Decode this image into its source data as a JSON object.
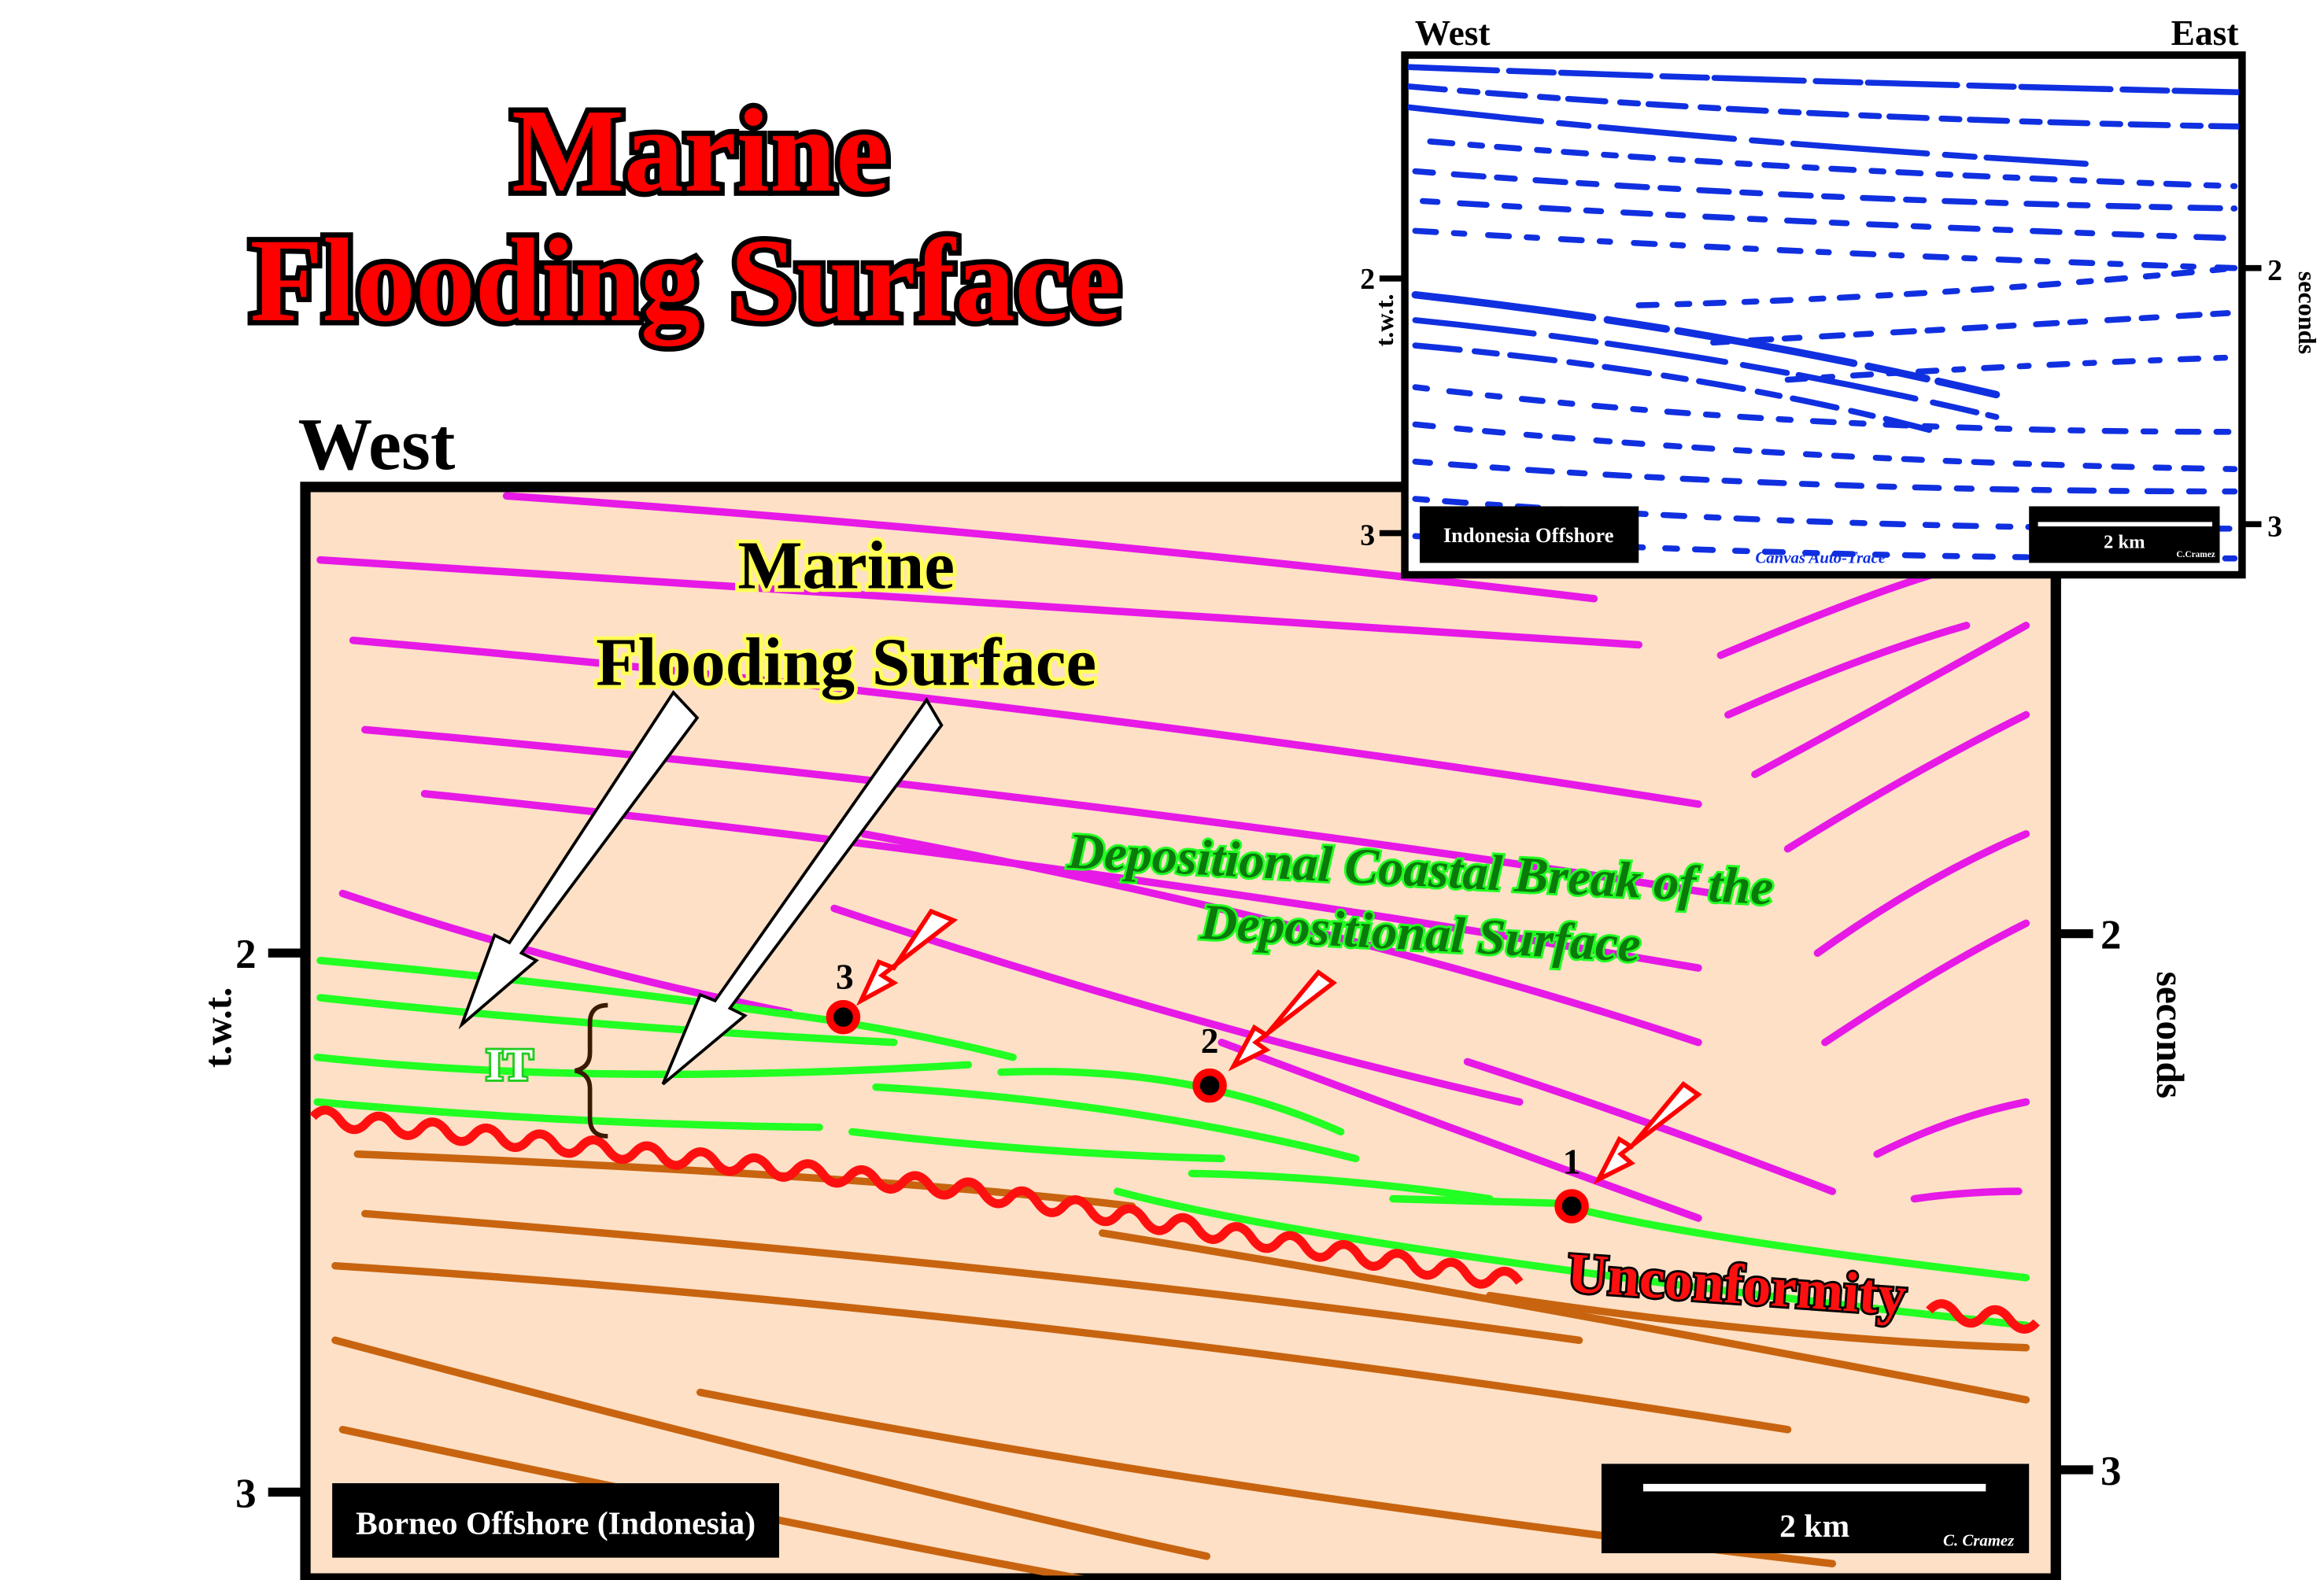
{
  "header": {
    "title": [
      "Marine",
      "Flooding Surface"
    ]
  },
  "section": {
    "west": "West",
    "y_label": "t.w.t.",
    "y2_label": "seconds",
    "left_ticks": [
      "2",
      "3"
    ],
    "right_ticks": [
      "2",
      "3"
    ],
    "callout": [
      "Marine",
      "Flooding Surface"
    ],
    "break_label": [
      "Depositional Coastal Break of the",
      "Depositional Surface"
    ],
    "interval": "IT",
    "points": [
      "1",
      "2",
      "3"
    ],
    "unconformity": "Unconformity",
    "location": "Borneo Offshore (Indonesia)",
    "scale": "2 km",
    "credit": "C. Cramez"
  },
  "inset": {
    "west": "West",
    "east": "East",
    "y_label": "t.w.t.",
    "y2_label": "seconds",
    "left_ticks": [
      "2",
      "3"
    ],
    "right_ticks": [
      "2",
      "3"
    ],
    "location": "Indonesia  Offshore",
    "scale": "2 km",
    "credit": "C.Cramez",
    "software": "Canvas Auto-Trace"
  }
}
